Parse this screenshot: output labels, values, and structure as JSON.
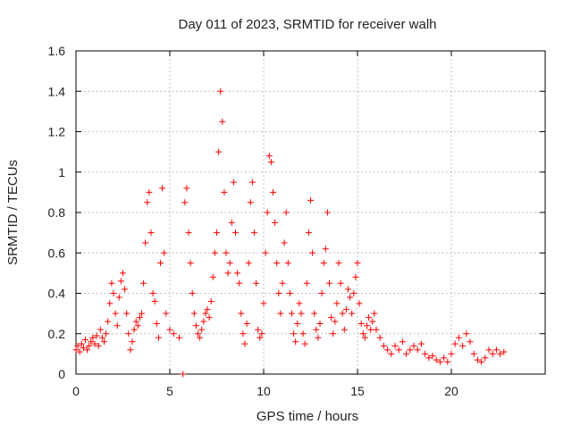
{
  "chart_data": {
    "type": "scatter",
    "title": "Day 011 of 2023, SRMTID for receiver walh",
    "xlabel": "GPS time / hours",
    "ylabel": "SRMTID / TECUs",
    "xlim": [
      0,
      25
    ],
    "ylim": [
      0,
      1.6
    ],
    "xticks": [
      0,
      5,
      10,
      15,
      20
    ],
    "yticks": [
      0,
      0.2,
      0.4,
      0.6,
      0.8,
      1,
      1.2,
      1.4,
      1.6
    ],
    "xtick_labels": [
      "0",
      "5",
      "10",
      "15",
      "20"
    ],
    "ytick_labels": [
      "0",
      "0.2",
      "0.4",
      "0.6",
      "0.8",
      "1",
      "1.2",
      "1.4",
      "1.6"
    ],
    "grid": true,
    "marker": "+",
    "series": [
      {
        "name": "SRMTID",
        "color": "#ff0000",
        "points": [
          [
            0.0,
            0.12
          ],
          [
            0.1,
            0.14
          ],
          [
            0.2,
            0.11
          ],
          [
            0.3,
            0.15
          ],
          [
            0.4,
            0.13
          ],
          [
            0.5,
            0.17
          ],
          [
            0.6,
            0.12
          ],
          [
            0.7,
            0.14
          ],
          [
            0.8,
            0.16
          ],
          [
            0.9,
            0.18
          ],
          [
            1.0,
            0.15
          ],
          [
            1.1,
            0.19
          ],
          [
            1.2,
            0.14
          ],
          [
            1.3,
            0.22
          ],
          [
            1.4,
            0.18
          ],
          [
            1.5,
            0.16
          ],
          [
            1.6,
            0.2
          ],
          [
            1.7,
            0.26
          ],
          [
            1.8,
            0.35
          ],
          [
            1.9,
            0.45
          ],
          [
            2.0,
            0.4
          ],
          [
            2.1,
            0.3
          ],
          [
            2.2,
            0.24
          ],
          [
            2.3,
            0.38
          ],
          [
            2.4,
            0.46
          ],
          [
            2.5,
            0.5
          ],
          [
            2.6,
            0.42
          ],
          [
            2.7,
            0.3
          ],
          [
            2.8,
            0.2
          ],
          [
            2.9,
            0.12
          ],
          [
            3.0,
            0.16
          ],
          [
            3.1,
            0.22
          ],
          [
            3.2,
            0.26
          ],
          [
            3.3,
            0.24
          ],
          [
            3.4,
            0.28
          ],
          [
            3.5,
            0.3
          ],
          [
            3.6,
            0.45
          ],
          [
            3.7,
            0.65
          ],
          [
            3.8,
            0.85
          ],
          [
            3.9,
            0.9
          ],
          [
            4.0,
            0.7
          ],
          [
            4.1,
            0.4
          ],
          [
            4.2,
            0.36
          ],
          [
            4.3,
            0.25
          ],
          [
            4.4,
            0.18
          ],
          [
            4.5,
            0.55
          ],
          [
            4.6,
            0.92
          ],
          [
            4.7,
            0.6
          ],
          [
            4.8,
            0.3
          ],
          [
            5.0,
            0.22
          ],
          [
            5.2,
            0.2
          ],
          [
            5.5,
            0.18
          ],
          [
            5.7,
            0.0
          ],
          [
            5.8,
            0.85
          ],
          [
            5.9,
            0.92
          ],
          [
            6.0,
            0.7
          ],
          [
            6.1,
            0.55
          ],
          [
            6.2,
            0.4
          ],
          [
            6.3,
            0.3
          ],
          [
            6.4,
            0.24
          ],
          [
            6.5,
            0.2
          ],
          [
            6.6,
            0.18
          ],
          [
            6.7,
            0.22
          ],
          [
            6.8,
            0.26
          ],
          [
            6.9,
            0.3
          ],
          [
            7.0,
            0.32
          ],
          [
            7.1,
            0.28
          ],
          [
            7.2,
            0.36
          ],
          [
            7.3,
            0.48
          ],
          [
            7.4,
            0.6
          ],
          [
            7.5,
            0.7
          ],
          [
            7.6,
            1.1
          ],
          [
            7.7,
            1.4
          ],
          [
            7.8,
            1.25
          ],
          [
            7.9,
            0.9
          ],
          [
            8.0,
            0.6
          ],
          [
            8.1,
            0.5
          ],
          [
            8.2,
            0.55
          ],
          [
            8.3,
            0.75
          ],
          [
            8.4,
            0.95
          ],
          [
            8.5,
            0.7
          ],
          [
            8.6,
            0.5
          ],
          [
            8.7,
            0.45
          ],
          [
            8.8,
            0.3
          ],
          [
            8.9,
            0.2
          ],
          [
            9.0,
            0.15
          ],
          [
            9.1,
            0.25
          ],
          [
            9.2,
            0.55
          ],
          [
            9.3,
            0.85
          ],
          [
            9.4,
            0.95
          ],
          [
            9.5,
            0.7
          ],
          [
            9.6,
            0.45
          ],
          [
            9.7,
            0.22
          ],
          [
            9.8,
            0.18
          ],
          [
            9.9,
            0.2
          ],
          [
            10.0,
            0.35
          ],
          [
            10.1,
            0.6
          ],
          [
            10.2,
            0.8
          ],
          [
            10.3,
            1.08
          ],
          [
            10.4,
            1.05
          ],
          [
            10.5,
            0.9
          ],
          [
            10.6,
            0.75
          ],
          [
            10.7,
            0.55
          ],
          [
            10.8,
            0.4
          ],
          [
            10.9,
            0.3
          ],
          [
            11.0,
            0.45
          ],
          [
            11.1,
            0.65
          ],
          [
            11.2,
            0.8
          ],
          [
            11.3,
            0.55
          ],
          [
            11.4,
            0.4
          ],
          [
            11.5,
            0.3
          ],
          [
            11.6,
            0.2
          ],
          [
            11.7,
            0.16
          ],
          [
            11.8,
            0.25
          ],
          [
            11.9,
            0.35
          ],
          [
            12.0,
            0.3
          ],
          [
            12.1,
            0.2
          ],
          [
            12.2,
            0.15
          ],
          [
            12.3,
            0.45
          ],
          [
            12.4,
            0.7
          ],
          [
            12.5,
            0.86
          ],
          [
            12.6,
            0.6
          ],
          [
            12.7,
            0.3
          ],
          [
            12.8,
            0.22
          ],
          [
            12.9,
            0.18
          ],
          [
            13.0,
            0.25
          ],
          [
            13.1,
            0.4
          ],
          [
            13.2,
            0.55
          ],
          [
            13.3,
            0.62
          ],
          [
            13.4,
            0.8
          ],
          [
            13.5,
            0.45
          ],
          [
            13.6,
            0.28
          ],
          [
            13.7,
            0.2
          ],
          [
            13.8,
            0.26
          ],
          [
            13.9,
            0.35
          ],
          [
            14.0,
            0.55
          ],
          [
            14.1,
            0.45
          ],
          [
            14.2,
            0.3
          ],
          [
            14.3,
            0.22
          ],
          [
            14.4,
            0.32
          ],
          [
            14.5,
            0.42
          ],
          [
            14.6,
            0.38
          ],
          [
            14.7,
            0.3
          ],
          [
            14.8,
            0.4
          ],
          [
            14.9,
            0.48
          ],
          [
            15.0,
            0.55
          ],
          [
            15.1,
            0.35
          ],
          [
            15.2,
            0.25
          ],
          [
            15.3,
            0.2
          ],
          [
            15.4,
            0.18
          ],
          [
            15.5,
            0.24
          ],
          [
            15.6,
            0.28
          ],
          [
            15.7,
            0.22
          ],
          [
            15.8,
            0.26
          ],
          [
            15.9,
            0.3
          ],
          [
            16.0,
            0.22
          ],
          [
            16.2,
            0.18
          ],
          [
            16.4,
            0.14
          ],
          [
            16.6,
            0.12
          ],
          [
            16.8,
            0.1
          ],
          [
            17.0,
            0.14
          ],
          [
            17.2,
            0.12
          ],
          [
            17.4,
            0.16
          ],
          [
            17.6,
            0.1
          ],
          [
            17.8,
            0.12
          ],
          [
            18.0,
            0.14
          ],
          [
            18.2,
            0.12
          ],
          [
            18.4,
            0.15
          ],
          [
            18.6,
            0.1
          ],
          [
            18.8,
            0.08
          ],
          [
            19.0,
            0.09
          ],
          [
            19.2,
            0.07
          ],
          [
            19.4,
            0.06
          ],
          [
            19.6,
            0.08
          ],
          [
            19.8,
            0.06
          ],
          [
            20.0,
            0.1
          ],
          [
            20.2,
            0.15
          ],
          [
            20.4,
            0.18
          ],
          [
            20.6,
            0.14
          ],
          [
            20.8,
            0.2
          ],
          [
            21.0,
            0.16
          ],
          [
            21.2,
            0.1
          ],
          [
            21.4,
            0.07
          ],
          [
            21.6,
            0.06
          ],
          [
            21.8,
            0.08
          ],
          [
            22.0,
            0.12
          ],
          [
            22.2,
            0.1
          ],
          [
            22.4,
            0.12
          ],
          [
            22.6,
            0.1
          ],
          [
            22.8,
            0.11
          ]
        ]
      }
    ]
  }
}
